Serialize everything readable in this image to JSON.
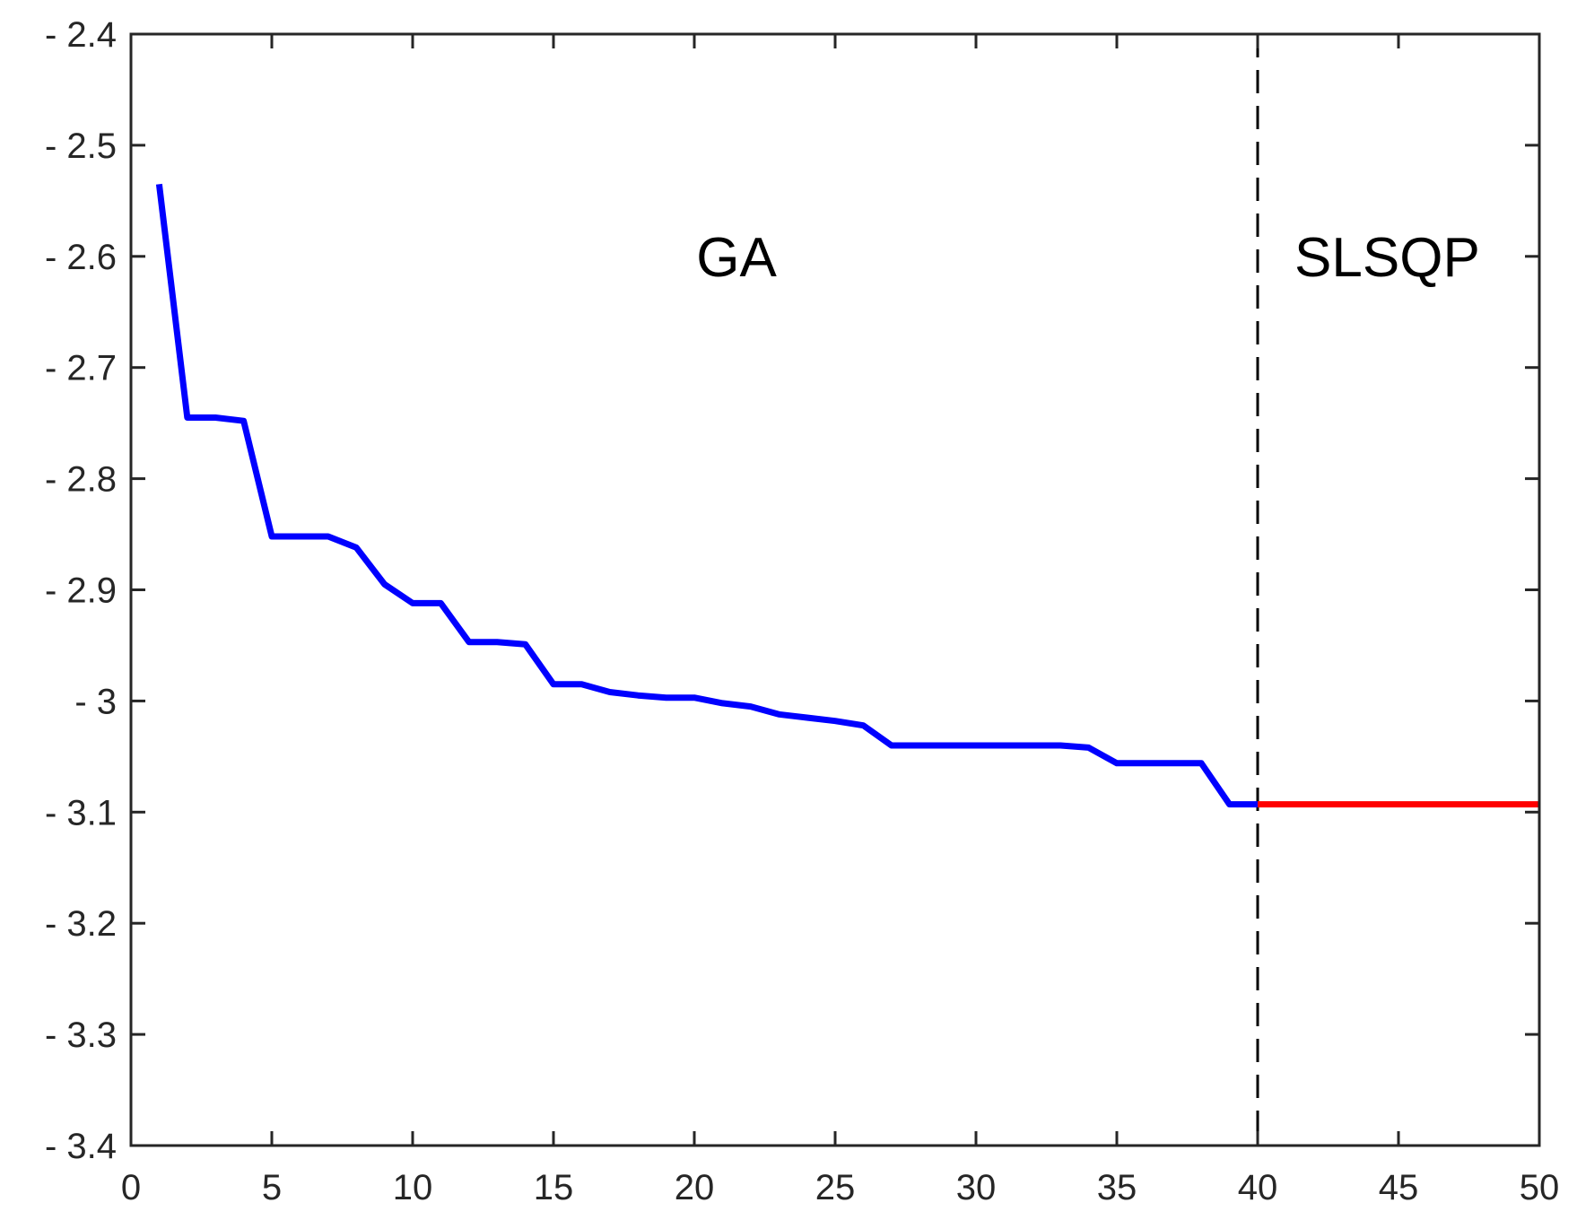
{
  "chart_data": {
    "type": "line",
    "title": "",
    "xlabel": "",
    "ylabel": "",
    "xlim": [
      0,
      50
    ],
    "ylim": [
      -3.4,
      -2.4
    ],
    "x_ticks": [
      0,
      5,
      10,
      15,
      20,
      25,
      30,
      35,
      40,
      45,
      50
    ],
    "x_tick_labels": [
      "0",
      "5",
      "10",
      "15",
      "20",
      "25",
      "30",
      "35",
      "40",
      "45",
      "50"
    ],
    "y_ticks": [
      -2.4,
      -2.5,
      -2.6,
      -2.7,
      -2.8,
      -2.9,
      -3.0,
      -3.1,
      -3.2,
      -3.3,
      -3.4
    ],
    "y_tick_labels": [
      "- 2.4",
      "- 2.5",
      "- 2.6",
      "- 2.7",
      "- 2.8",
      "- 2.9",
      "- 3",
      "- 3.1",
      "- 3.2",
      "- 3.3",
      "- 3.4"
    ],
    "grid": false,
    "series": [
      {
        "color": "#0000ff",
        "x": [
          1,
          2,
          3,
          4,
          5,
          6,
          7,
          8,
          9,
          10,
          11,
          12,
          13,
          14,
          15,
          16,
          17,
          18,
          19,
          20,
          21,
          22,
          23,
          24,
          25,
          26,
          27,
          28,
          29,
          30,
          31,
          32,
          33,
          34,
          35,
          36,
          37,
          38,
          39,
          40
        ],
        "y": [
          -2.535,
          -2.745,
          -2.745,
          -2.748,
          -2.852,
          -2.852,
          -2.852,
          -2.862,
          -2.895,
          -2.912,
          -2.912,
          -2.947,
          -2.947,
          -2.949,
          -2.985,
          -2.985,
          -2.992,
          -2.995,
          -2.997,
          -2.997,
          -3.002,
          -3.005,
          -3.012,
          -3.015,
          -3.018,
          -3.022,
          -3.04,
          -3.04,
          -3.04,
          -3.04,
          -3.04,
          -3.04,
          -3.04,
          -3.042,
          -3.056,
          -3.056,
          -3.056,
          -3.056,
          -3.093,
          -3.093
        ]
      },
      {
        "color": "#ff0000",
        "x": [
          40,
          50
        ],
        "y": [
          -3.093,
          -3.093
        ]
      }
    ],
    "vertical_line": {
      "x": 40,
      "style": "dashed",
      "color": "#000000"
    },
    "annotations": [
      {
        "text": "GA",
        "x": 21.5,
        "y": -2.6
      },
      {
        "text": "SLSQP",
        "x": 44.6,
        "y": -2.6
      }
    ]
  }
}
